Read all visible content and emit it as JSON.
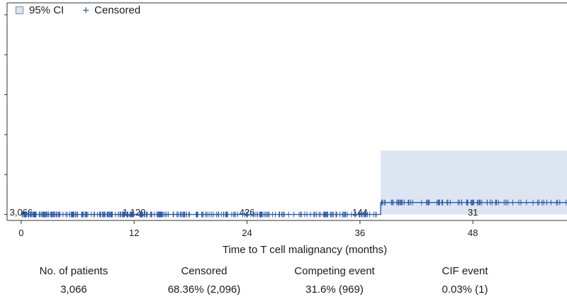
{
  "chart_data": {
    "type": "line",
    "xlabel": "Time to T cell malignancy (months)",
    "x_ticks": [
      0,
      12,
      24,
      36,
      48
    ],
    "y_tick_count": 6,
    "xlim": [
      -1.5,
      58
    ],
    "step": {
      "x": [
        0,
        38.2,
        58
      ],
      "y": [
        0,
        0.03,
        0.03
      ]
    },
    "ci_band": {
      "x_start": 38.2,
      "x_end": 58,
      "lower": 0,
      "upper": 0.16
    },
    "ylim": [
      -0.015,
      0.53
    ],
    "censor_ranges": [
      {
        "from": 0.1,
        "to": 38.2,
        "count": 310,
        "y": 0
      },
      {
        "from": 38.3,
        "to": 58,
        "count": 85,
        "y": 0.03
      }
    ],
    "at_risk": [
      {
        "x": 0,
        "label": "3,066"
      },
      {
        "x": 12,
        "label": "1,120"
      },
      {
        "x": 24,
        "label": "426"
      },
      {
        "x": 36,
        "label": "144"
      },
      {
        "x": 48,
        "label": "31"
      }
    ],
    "legend": [
      {
        "name": "95% CI",
        "symbol": "square"
      },
      {
        "name": "Censored",
        "symbol": "plus"
      }
    ],
    "colors": {
      "line": "#2a58a6",
      "ci_fill": "#dde5f2",
      "axis": "#333333"
    }
  },
  "summary": {
    "headers": [
      "No. of patients",
      "Censored",
      "Competing event",
      "CIF event"
    ],
    "values": [
      "3,066",
      "68.36% (2,096)",
      "31.6% (969)",
      "0.03% (1)"
    ]
  }
}
